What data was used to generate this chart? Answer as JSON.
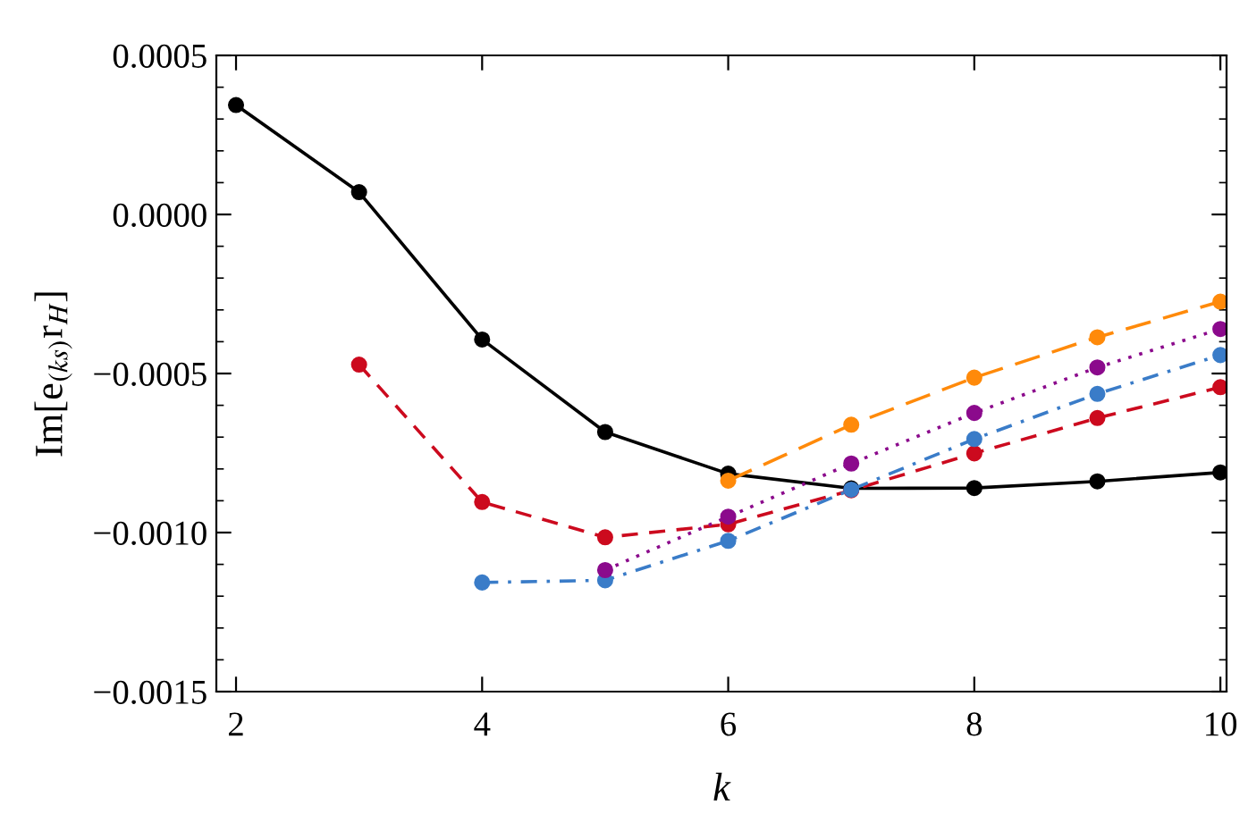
{
  "chart_data": {
    "type": "line",
    "xlabel": "k",
    "ylabel": "Im[e$_{(ks)}$r$_{H}$]",
    "xlim": [
      1.84,
      10.05
    ],
    "xticks": [
      2,
      4,
      6,
      8,
      10
    ],
    "ylim": [
      -0.0015,
      0.0005
    ],
    "yticks": [
      {
        "value": 0.0005,
        "label": "0.0005"
      },
      {
        "value": 0.0,
        "label": "0.0000"
      },
      {
        "value": -0.0005,
        "label": "−0.0005"
      },
      {
        "value": -0.001,
        "label": "−0.0010"
      },
      {
        "value": -0.0015,
        "label": "−0.0015"
      }
    ],
    "grid": false,
    "marker": "circle",
    "series": [
      {
        "color": "#000000",
        "line_style": "solid",
        "x": [
          2,
          3,
          4,
          5,
          6,
          7,
          8,
          9,
          10
        ],
        "values": [
          0.000344,
          7e-05,
          -0.000393,
          -0.000684,
          -0.000815,
          -0.000861,
          -0.00086,
          -0.000839,
          -0.000811
        ]
      },
      {
        "color": "#cc0a1e",
        "line_style": "dashed",
        "x": [
          3,
          4,
          5,
          6,
          7,
          8,
          9,
          10
        ],
        "values": [
          -0.000472,
          -0.000904,
          -0.001015,
          -0.000974,
          -0.000867,
          -0.000751,
          -0.00064,
          -0.000543
        ]
      },
      {
        "color": "#3a7cc8",
        "line_style": "dashdot",
        "x": [
          4,
          5,
          6,
          7,
          8,
          9,
          10
        ],
        "values": [
          -0.001157,
          -0.00115,
          -0.001026,
          -0.000865,
          -0.000706,
          -0.000564,
          -0.000442
        ]
      },
      {
        "color": "#8b0a8c",
        "line_style": "dotted",
        "x": [
          5,
          6,
          7,
          8,
          9,
          10
        ],
        "values": [
          -0.001118,
          -0.00095,
          -0.000783,
          -0.000624,
          -0.000481,
          -0.00036
        ]
      },
      {
        "color": "#ff8a0a",
        "line_style": "longdash",
        "x": [
          6,
          7,
          8,
          9,
          10
        ],
        "values": [
          -0.000837,
          -0.000661,
          -0.000513,
          -0.000386,
          -0.000274
        ]
      }
    ]
  }
}
